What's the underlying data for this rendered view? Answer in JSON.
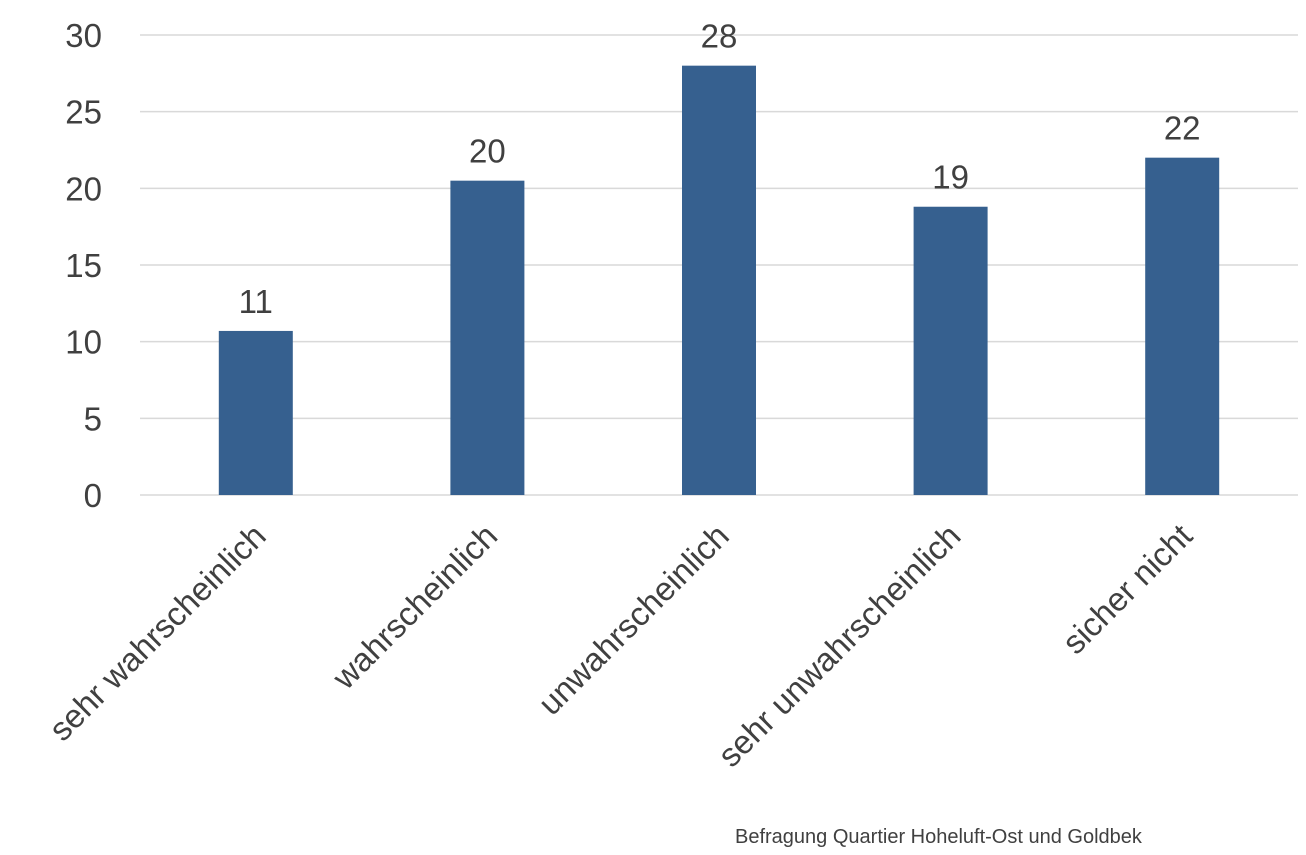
{
  "chart_data": {
    "type": "bar",
    "categories": [
      "sehr wahrscheinlich",
      "wahrscheinlich",
      "unwahrscheinlich",
      "sehr unwahrscheinlich",
      "sicher nicht"
    ],
    "values": [
      10.7,
      20.5,
      28,
      18.8,
      22
    ],
    "data_labels": [
      "11",
      "20",
      "28",
      "19",
      "22"
    ],
    "title": "",
    "xlabel": "",
    "ylabel": "",
    "ylim": [
      0,
      30
    ],
    "yticks": [
      0,
      5,
      10,
      15,
      20,
      25,
      30
    ],
    "grid": true,
    "legend": "none",
    "bar_color": "#36608f"
  },
  "source_note": "Befragung Quartier Hoheluft-Ost und Goldbek"
}
